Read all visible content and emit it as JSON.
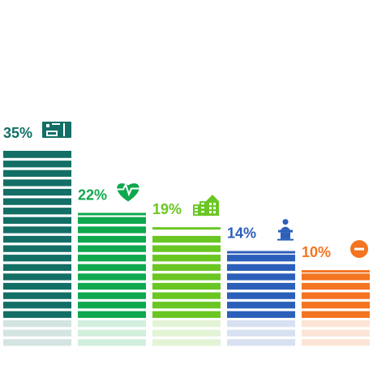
{
  "chart_data": {
    "type": "bar",
    "title": "",
    "xlabel": "",
    "ylabel": "",
    "ylim": [
      0,
      35
    ],
    "grid": false,
    "legend": "none",
    "categories": [
      "money",
      "health",
      "housing",
      "politics",
      "other"
    ],
    "values": [
      35,
      22,
      19,
      14,
      10
    ],
    "value_labels": [
      "35%",
      "22%",
      "19%",
      "14%",
      "10%"
    ],
    "colors": [
      "#136f66",
      "#0fa84e",
      "#6ac623",
      "#2c5fba",
      "#f47421"
    ],
    "icons": [
      "banknote-icon",
      "heart-pulse-icon",
      "city-buildings-icon",
      "podium-speaker-icon",
      "minus-circle-icon"
    ],
    "reflection": true
  }
}
